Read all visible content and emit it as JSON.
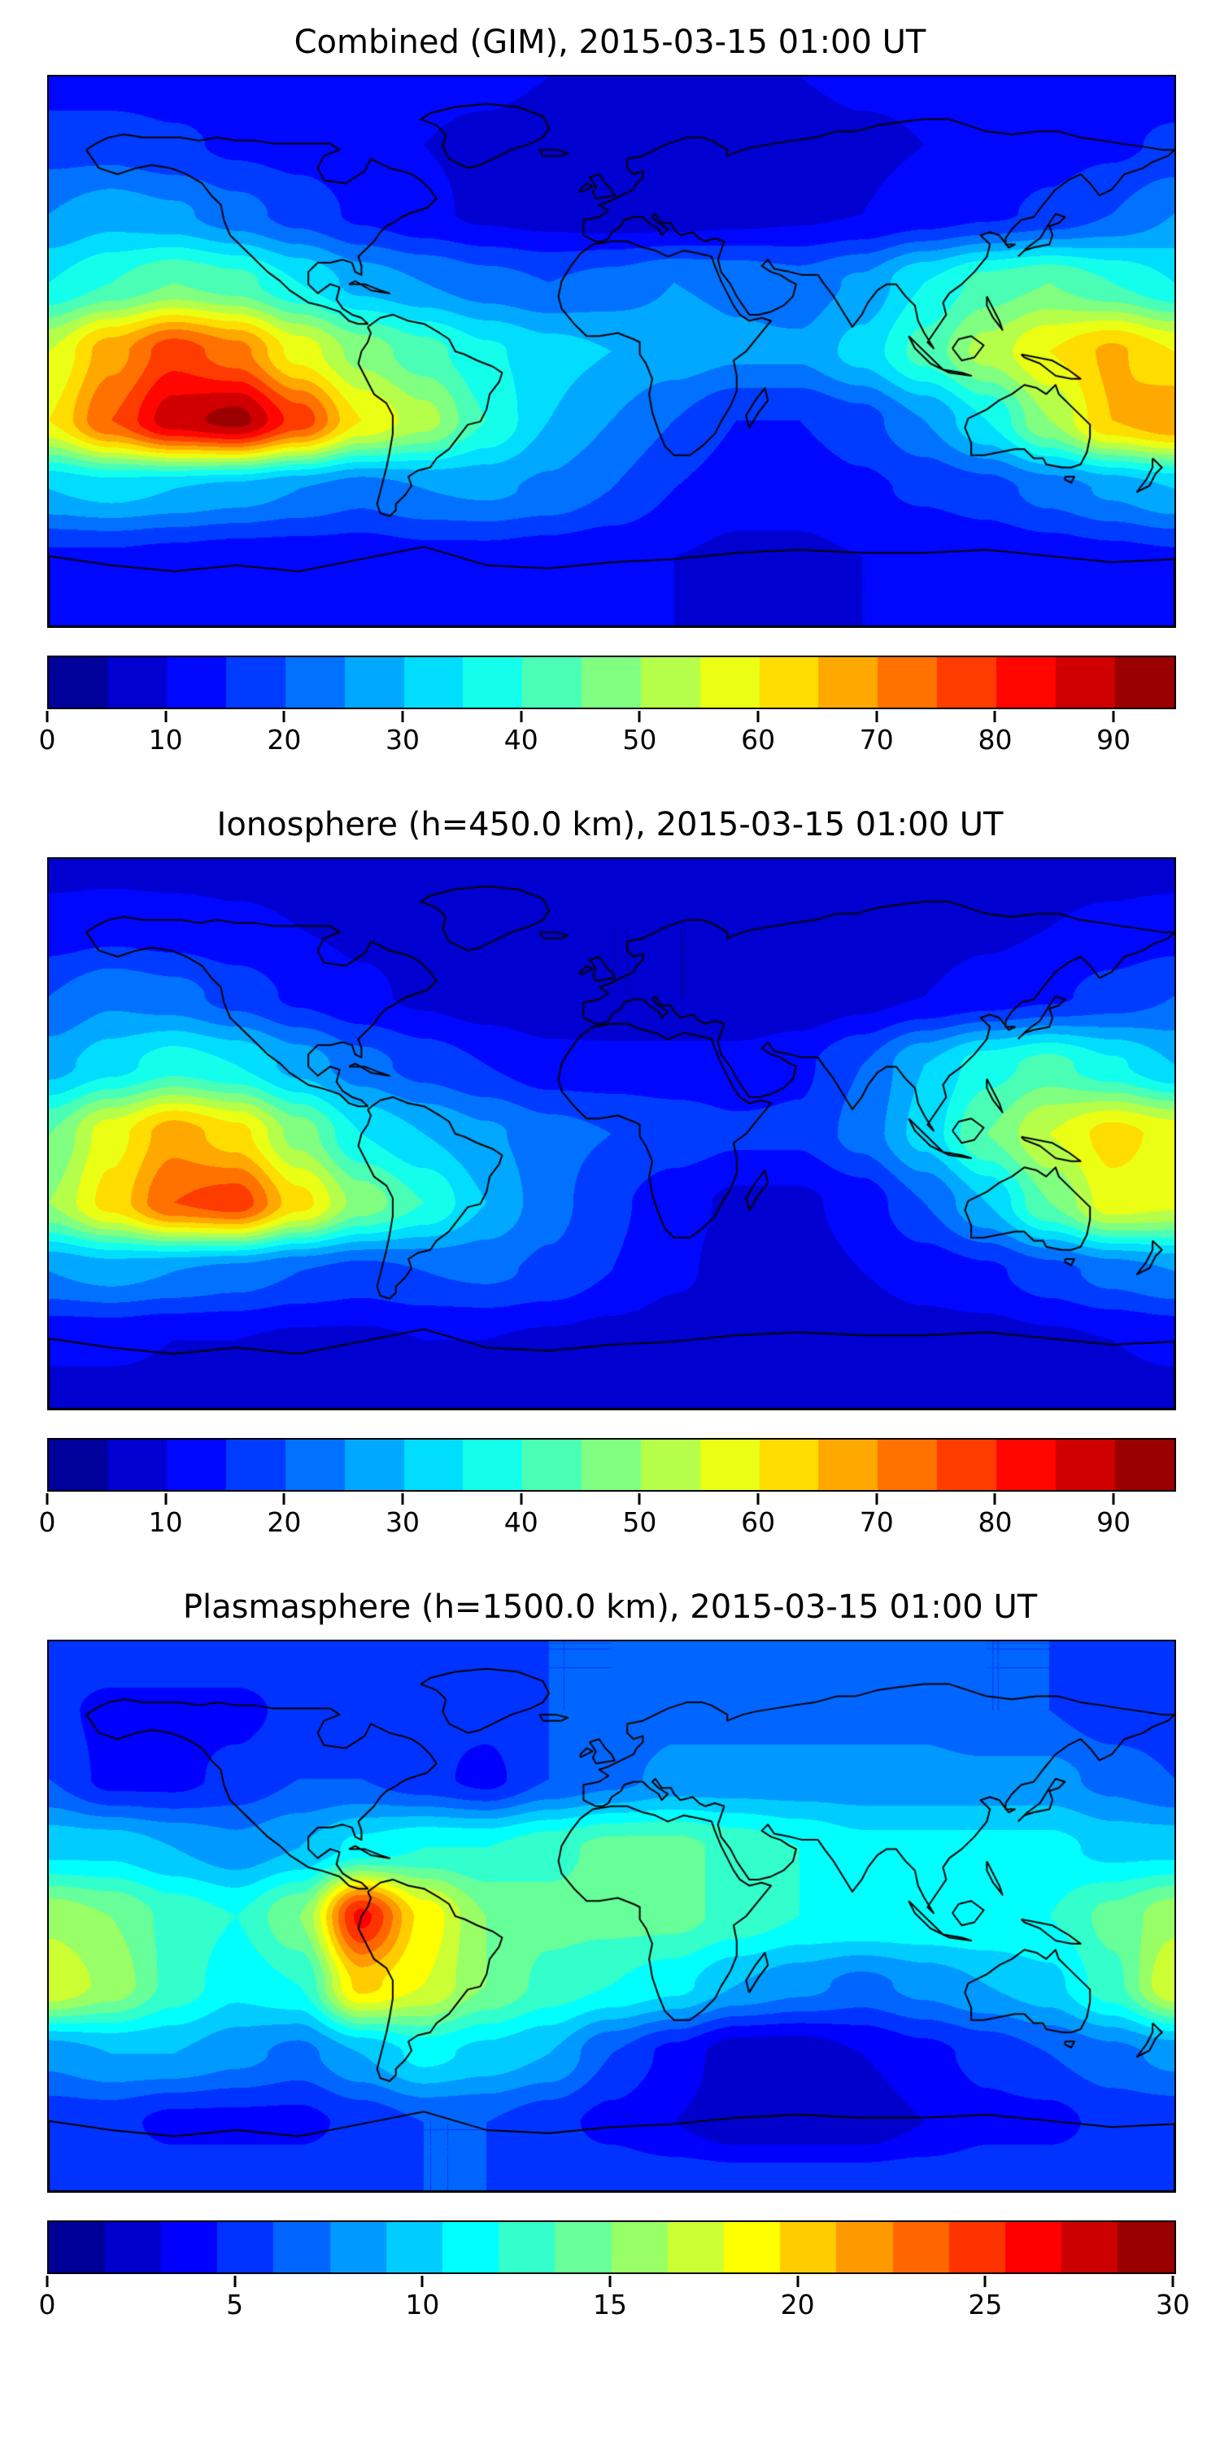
{
  "styles": {
    "background": "#ffffff",
    "coastline_color": "#000000",
    "frame_color": "#000000",
    "colormap": "jet"
  },
  "chart_data": [
    {
      "type": "heatmap",
      "title": "Combined (GIM), 2015-03-15 01:00 UT",
      "projection": "equirectangular",
      "basemap": "world-coastline-outline",
      "lon_range": [
        -180,
        180
      ],
      "lat_range": [
        -90,
        90
      ],
      "colormap": "jet",
      "levels_step": 5,
      "vmin": 0,
      "vmax": 95,
      "colorbar_ticks": [
        0,
        10,
        20,
        30,
        40,
        50,
        60,
        70,
        80,
        90
      ],
      "grid": {
        "lons": [
          -180,
          -160,
          -140,
          -120,
          -100,
          -80,
          -60,
          -40,
          -20,
          0,
          20,
          40,
          60,
          80,
          100,
          120,
          140,
          160,
          180
        ],
        "lats": [
          90,
          67.5,
          45,
          22.5,
          0,
          -22.5,
          -45,
          -67.5,
          -90
        ],
        "values": [
          [
            12,
            12,
            12,
            12,
            12,
            12,
            11,
            11,
            10,
            10,
            10,
            10,
            10,
            11,
            11,
            12,
            12,
            12,
            12
          ],
          [
            18,
            18,
            16,
            14,
            13,
            12,
            10,
            9,
            8,
            7,
            7,
            7,
            8,
            9,
            10,
            11,
            13,
            14,
            16
          ],
          [
            25,
            28,
            26,
            22,
            18,
            14,
            11,
            9,
            8,
            7,
            7,
            8,
            9,
            10,
            12,
            14,
            16,
            20,
            25
          ],
          [
            35,
            40,
            45,
            42,
            35,
            28,
            25,
            22,
            20,
            22,
            25,
            24,
            22,
            26,
            35,
            42,
            45,
            40,
            35
          ],
          [
            55,
            68,
            78,
            72,
            58,
            48,
            42,
            36,
            32,
            30,
            28,
            26,
            26,
            32,
            42,
            52,
            60,
            66,
            60
          ],
          [
            60,
            75,
            88,
            92,
            78,
            60,
            52,
            40,
            30,
            25,
            20,
            15,
            15,
            18,
            25,
            35,
            50,
            65,
            70
          ],
          [
            30,
            32,
            30,
            28,
            25,
            22,
            25,
            26,
            24,
            20,
            15,
            12,
            12,
            14,
            16,
            18,
            22,
            26,
            30
          ],
          [
            14,
            14,
            13,
            12,
            12,
            12,
            13,
            13,
            12,
            11,
            10,
            9,
            9,
            10,
            10,
            11,
            12,
            13,
            14
          ],
          [
            10,
            10,
            10,
            10,
            10,
            10,
            10,
            10,
            10,
            10,
            10,
            10,
            10,
            10,
            10,
            10,
            10,
            10,
            10
          ]
        ]
      }
    },
    {
      "type": "heatmap",
      "title": "Ionosphere  (h=450.0 km), 2015-03-15 01:00 UT",
      "projection": "equirectangular",
      "basemap": "world-coastline-outline",
      "lon_range": [
        -180,
        180
      ],
      "lat_range": [
        -90,
        90
      ],
      "colormap": "jet",
      "levels_step": 5,
      "vmin": 0,
      "vmax": 95,
      "colorbar_ticks": [
        0,
        10,
        20,
        30,
        40,
        50,
        60,
        70,
        80,
        90
      ],
      "grid": {
        "lons": [
          -180,
          -160,
          -140,
          -120,
          -100,
          -80,
          -60,
          -40,
          -20,
          0,
          20,
          40,
          60,
          80,
          100,
          120,
          140,
          160,
          180
        ],
        "lats": [
          90,
          67.5,
          45,
          22.5,
          0,
          -22.5,
          -45,
          -67.5,
          -90
        ],
        "values": [
          [
            8,
            8,
            8,
            8,
            8,
            8,
            8,
            7,
            7,
            7,
            7,
            7,
            7,
            7,
            8,
            8,
            8,
            8,
            8
          ],
          [
            12,
            13,
            12,
            11,
            10,
            9,
            8,
            7,
            6,
            5,
            5,
            5,
            6,
            7,
            8,
            9,
            10,
            11,
            12
          ],
          [
            20,
            24,
            22,
            18,
            14,
            11,
            9,
            7,
            6,
            5,
            5,
            5,
            6,
            8,
            10,
            12,
            14,
            17,
            20
          ],
          [
            28,
            33,
            38,
            35,
            28,
            22,
            18,
            15,
            12,
            12,
            12,
            12,
            14,
            20,
            30,
            38,
            42,
            36,
            30
          ],
          [
            45,
            58,
            68,
            62,
            48,
            35,
            30,
            26,
            22,
            20,
            18,
            16,
            16,
            22,
            32,
            45,
            55,
            62,
            58
          ],
          [
            50,
            62,
            75,
            78,
            62,
            48,
            40,
            30,
            22,
            16,
            12,
            9,
            9,
            12,
            20,
            30,
            45,
            58,
            56
          ],
          [
            25,
            27,
            25,
            23,
            20,
            18,
            20,
            21,
            19,
            15,
            11,
            8,
            8,
            10,
            12,
            14,
            18,
            22,
            25
          ],
          [
            11,
            11,
            10,
            10,
            9,
            9,
            10,
            10,
            9,
            8,
            7,
            6,
            6,
            7,
            8,
            8,
            9,
            10,
            11
          ],
          [
            8,
            8,
            8,
            8,
            8,
            8,
            8,
            8,
            8,
            8,
            8,
            8,
            8,
            8,
            8,
            8,
            8,
            8,
            8
          ]
        ]
      }
    },
    {
      "type": "heatmap",
      "title": "Plasmasphere (h=1500.0 km), 2015-03-15 01:00 UT",
      "projection": "equirectangular",
      "basemap": "world-coastline-outline",
      "lon_range": [
        -180,
        180
      ],
      "lat_range": [
        -90,
        90
      ],
      "colormap": "jet",
      "levels_step": 1.5,
      "vmin": 0,
      "vmax": 30,
      "colorbar_ticks": [
        0,
        5,
        10,
        15,
        20,
        25,
        30
      ],
      "grid": {
        "lons": [
          -180,
          -160,
          -140,
          -120,
          -100,
          -80,
          -60,
          -40,
          -20,
          0,
          20,
          40,
          60,
          80,
          100,
          120,
          140,
          160,
          180
        ],
        "lats": [
          90,
          67.5,
          45,
          22.5,
          0,
          -22.5,
          -45,
          -67.5,
          -90
        ],
        "values": [
          [
            6,
            6,
            6,
            6,
            6,
            6,
            6,
            6,
            6,
            6,
            6,
            6,
            6,
            6,
            6,
            6,
            6,
            6,
            6
          ],
          [
            5,
            4,
            4,
            4,
            5,
            5,
            5,
            5,
            6,
            6,
            7,
            7,
            7,
            7,
            7,
            6,
            6,
            5,
            5
          ],
          [
            6,
            4,
            4,
            5,
            6,
            6,
            5,
            4,
            6,
            7,
            8,
            8,
            8,
            8,
            8,
            8,
            8,
            7,
            6
          ],
          [
            10,
            10,
            9,
            8,
            9,
            11,
            12,
            12,
            13,
            14,
            14,
            13,
            12,
            11,
            11,
            11,
            11,
            10,
            10
          ],
          [
            16,
            15,
            13,
            12,
            15,
            26,
            19,
            15,
            14,
            14,
            14,
            13,
            12,
            12,
            12,
            12,
            12,
            14,
            16
          ],
          [
            18,
            16,
            13,
            11,
            12,
            20,
            18,
            15,
            13,
            12,
            11,
            9,
            8,
            7,
            8,
            9,
            10,
            13,
            18
          ],
          [
            8,
            9,
            9,
            8,
            7,
            9,
            11,
            10,
            9,
            6,
            4,
            2,
            2,
            3,
            4,
            5,
            6,
            7,
            8
          ],
          [
            5,
            5,
            4,
            4,
            4,
            5,
            6,
            6,
            5,
            4,
            3,
            2,
            2,
            2,
            3,
            4,
            4,
            5,
            5
          ],
          [
            6,
            6,
            6,
            6,
            6,
            6,
            6,
            6,
            6,
            6,
            6,
            6,
            6,
            6,
            6,
            6,
            6,
            6,
            6
          ]
        ]
      }
    }
  ]
}
